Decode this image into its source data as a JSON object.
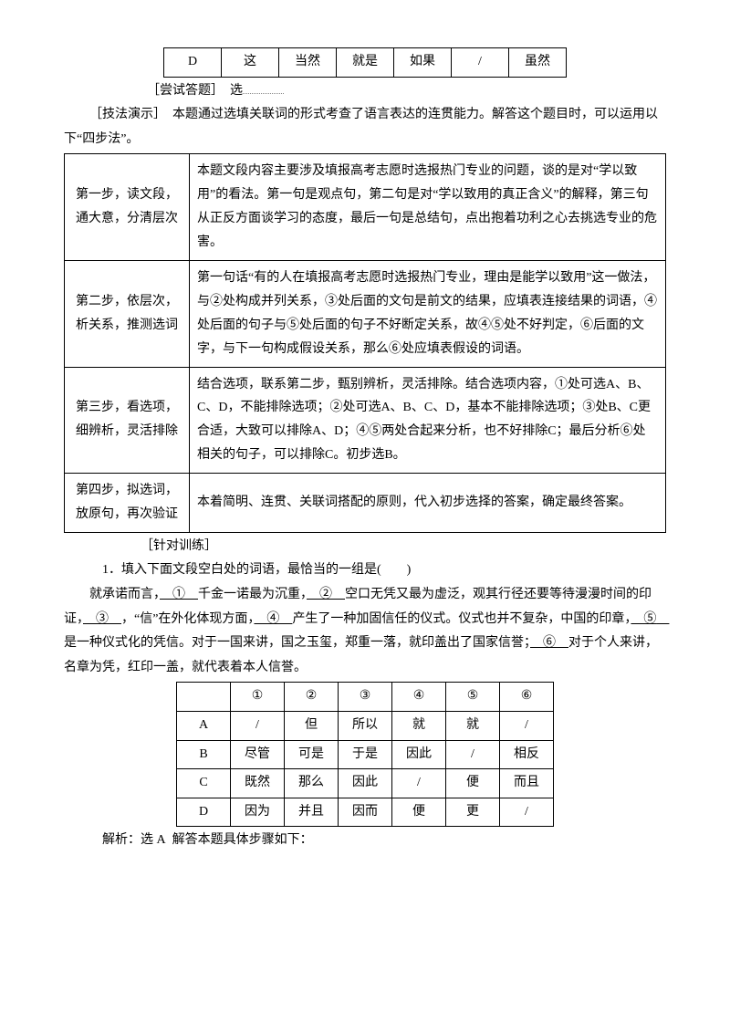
{
  "top_table": {
    "row_label": "D",
    "cells": [
      "这",
      "当然",
      "就是",
      "如果",
      "/",
      "虽然"
    ]
  },
  "answer_line": {
    "prefix": "［尝试答题］",
    "text": "选"
  },
  "method_intro": {
    "label": "［技法演示］",
    "text": "本题通过选填关联词的形式考查了语言表达的连贯能力。解答这个题目时，可以运用以下“四步法”。"
  },
  "method_steps": [
    {
      "title": "第一步，读文段，通大意，分清层次",
      "desc": "本题文段内容主要涉及填报高考志愿时选报热门专业的问题，谈的是对“学以致用”的看法。第一句是观点句，第二句是对“学以致用的真正含义”的解释，第三句从正反方面谈学习的态度，最后一句是总结句，点出抱着功利之心去挑选专业的危害。"
    },
    {
      "title": "第二步，依层次，析关系，推测选词",
      "desc": "第一句话“有的人在填报高考志愿时选报热门专业，理由是能学以致用”这一做法，与②处构成并列关系，③处后面的文句是前文的结果，应填表连接结果的词语，④处后面的句子与⑤处后面的句子不好断定关系，故④⑤处不好判定，⑥后面的文字，与下一句构成假设关系，那么⑥处应填表假设的词语。"
    },
    {
      "title": "第三步，看选项，细辨析，灵活排除",
      "desc": "结合选项，联系第二步，甄别辨析，灵活排除。结合选项内容，①处可选A、B、C、D，不能排除选项；②处可选A、B、C、D，基本不能排除选项；③处B、C更合适，大致可以排除A、D；④⑤两处合起来分析，也不好排除C；最后分析⑥处相关的句子，可以排除C。初步选B。"
    },
    {
      "title": "第四步，拟选词，放原句，再次验证",
      "desc": "本着简明、连贯、关联词搭配的原则，代入初步选择的答案，确定最终答案。"
    }
  ],
  "practice": {
    "label": "［针对训练］",
    "q_num": "1．",
    "q_text": "填入下面文段空白处的词语，最恰当的一组是(　　)",
    "passage": "就承诺而言，　①　千金一诺最为沉重，　②　空口无凭又最为虚泛，观其行径还要等待漫漫时间的印证，　③　，“信”在外化体现方面，　④　产生了一种加固信任的仪式。仪式也并不复杂，中国的印章，　⑤　是一种仪式化的凭信。对于一国来讲，国之玉玺，郑重一落，就印盖出了国家信誉；　⑥　对于个人来讲，名章为凭，红印一盖，就代表着本人信誉。"
  },
  "options_table": {
    "headers": [
      "",
      "①",
      "②",
      "③",
      "④",
      "⑤",
      "⑥"
    ],
    "rows": [
      {
        "label": "A",
        "cells": [
          "/",
          "但",
          "所以",
          "就",
          "就",
          "/"
        ]
      },
      {
        "label": "B",
        "cells": [
          "尽管",
          "可是",
          "于是",
          "因此",
          "/",
          "相反"
        ]
      },
      {
        "label": "C",
        "cells": [
          "既然",
          "那么",
          "因此",
          "/",
          "便",
          "而且"
        ]
      },
      {
        "label": "D",
        "cells": [
          "因为",
          "并且",
          "因而",
          "便",
          "更",
          "/"
        ]
      }
    ]
  },
  "answer": {
    "prefix": "解析：选 A",
    "text": "解答本题具体步骤如下："
  },
  "styles": {
    "background_color": "#ffffff",
    "text_color": "#000000",
    "border_color": "#000000",
    "font_family": "SimSun",
    "base_fontsize": 14
  }
}
